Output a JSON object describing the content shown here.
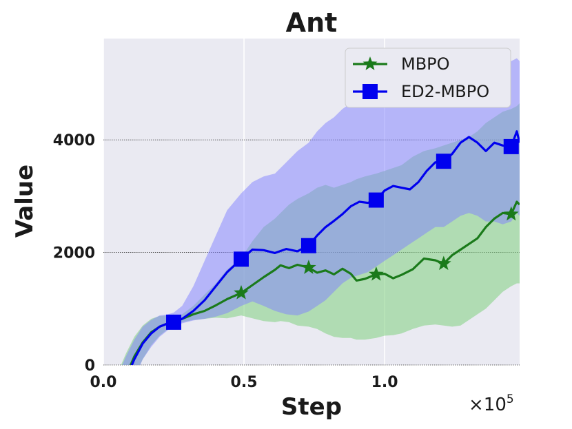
{
  "chart_data": {
    "type": "line",
    "title": "Ant",
    "xlabel": "Step",
    "ylabel": "Value",
    "x_multiplier": "×10",
    "x_multiplier_exp": "5",
    "xlim": [
      0,
      1.48
    ],
    "ylim": [
      0,
      5800
    ],
    "xticks": [
      {
        "value": 0.0,
        "label": "0.0"
      },
      {
        "value": 0.5,
        "label": "0.5"
      },
      {
        "value": 1.0,
        "label": "1.0"
      }
    ],
    "yticks": [
      {
        "value": 0,
        "label": "0"
      },
      {
        "value": 2000,
        "label": "2000"
      },
      {
        "value": 4000,
        "label": "4000"
      }
    ],
    "grid": true,
    "legend_position": "top-right",
    "background": "#eaeaf2",
    "series": [
      {
        "name": "MBPO",
        "color": "#1a7a1a",
        "band_color": "#7fcf7f",
        "marker": "star",
        "x": [
          0.02,
          0.05,
          0.08,
          0.11,
          0.14,
          0.17,
          0.2,
          0.23,
          0.25,
          0.28,
          0.32,
          0.36,
          0.4,
          0.44,
          0.49,
          0.53,
          0.57,
          0.61,
          0.63,
          0.66,
          0.69,
          0.73,
          0.76,
          0.79,
          0.82,
          0.85,
          0.88,
          0.9,
          0.93,
          0.97,
          1.0,
          1.03,
          1.06,
          1.1,
          1.14,
          1.18,
          1.21,
          1.24,
          1.27,
          1.3,
          1.33,
          1.36,
          1.39,
          1.42,
          1.45,
          1.47,
          1.48
        ],
        "y": [
          -800,
          -500,
          -200,
          150,
          400,
          580,
          680,
          740,
          760,
          820,
          900,
          960,
          1060,
          1170,
          1280,
          1420,
          1560,
          1690,
          1770,
          1720,
          1780,
          1730,
          1640,
          1680,
          1610,
          1710,
          1620,
          1500,
          1530,
          1610,
          1620,
          1540,
          1600,
          1700,
          1890,
          1860,
          1800,
          1950,
          2050,
          2150,
          2250,
          2450,
          2600,
          2700,
          2680,
          2900,
          2850
        ],
        "lower": [
          -1200,
          -900,
          -600,
          -200,
          100,
          350,
          520,
          640,
          700,
          760,
          800,
          820,
          840,
          830,
          880,
          830,
          780,
          760,
          780,
          760,
          700,
          680,
          640,
          560,
          500,
          480,
          480,
          450,
          450,
          480,
          520,
          530,
          560,
          640,
          700,
          720,
          700,
          680,
          700,
          800,
          900,
          1000,
          1150,
          1300,
          1400,
          1450,
          1450
        ],
        "upper": [
          -400,
          -150,
          200,
          500,
          700,
          820,
          870,
          880,
          860,
          900,
          1050,
          1250,
          1450,
          1700,
          1900,
          2200,
          2450,
          2600,
          2700,
          2850,
          2950,
          3050,
          3150,
          3200,
          3150,
          3200,
          3250,
          3300,
          3350,
          3400,
          3450,
          3500,
          3550,
          3700,
          3800,
          3850,
          3900,
          3950,
          4000,
          4050,
          4150,
          4300,
          4400,
          4500,
          4550,
          4600,
          4650
        ],
        "markers_x": [
          0.25,
          0.49,
          0.73,
          0.97,
          1.21,
          1.45
        ]
      },
      {
        "name": "ED2-MBPO",
        "color": "#0000ee",
        "band_color": "#8080ff",
        "marker": "square",
        "x": [
          0.02,
          0.05,
          0.08,
          0.11,
          0.14,
          0.17,
          0.2,
          0.23,
          0.25,
          0.28,
          0.32,
          0.36,
          0.4,
          0.44,
          0.49,
          0.53,
          0.57,
          0.61,
          0.65,
          0.69,
          0.73,
          0.76,
          0.79,
          0.82,
          0.85,
          0.88,
          0.91,
          0.94,
          0.97,
          1.0,
          1.03,
          1.06,
          1.09,
          1.12,
          1.15,
          1.18,
          1.21,
          1.24,
          1.27,
          1.3,
          1.33,
          1.36,
          1.39,
          1.42,
          1.45,
          1.47,
          1.48
        ],
        "y": [
          -900,
          -600,
          -250,
          100,
          380,
          560,
          680,
          740,
          760,
          820,
          960,
          1150,
          1400,
          1650,
          1880,
          2050,
          2040,
          1990,
          2060,
          2020,
          2120,
          2300,
          2450,
          2560,
          2680,
          2820,
          2900,
          2880,
          2930,
          3100,
          3180,
          3150,
          3120,
          3250,
          3450,
          3600,
          3620,
          3750,
          3950,
          4050,
          3950,
          3800,
          3950,
          3900,
          3880,
          4150,
          3950
        ],
        "lower": [
          -1300,
          -1000,
          -600,
          -250,
          100,
          320,
          500,
          620,
          690,
          740,
          790,
          820,
          860,
          920,
          1050,
          1130,
          1050,
          960,
          900,
          880,
          950,
          1050,
          1150,
          1300,
          1450,
          1550,
          1600,
          1650,
          1750,
          1850,
          1950,
          2050,
          2150,
          2250,
          2350,
          2450,
          2450,
          2550,
          2650,
          2700,
          2650,
          2550,
          2550,
          2500,
          2550,
          2700,
          2650
        ],
        "upper": [
          -500,
          -200,
          150,
          450,
          680,
          800,
          880,
          900,
          930,
          1050,
          1400,
          1850,
          2300,
          2750,
          3050,
          3250,
          3350,
          3400,
          3600,
          3800,
          3950,
          4150,
          4300,
          4400,
          4550,
          4650,
          4750,
          4800,
          4850,
          4950,
          5000,
          5000,
          4950,
          5000,
          5050,
          5100,
          5100,
          5150,
          5200,
          5250,
          5250,
          5300,
          5350,
          5400,
          5400,
          5450,
          5400
        ],
        "markers_x": [
          0.25,
          0.49,
          0.73,
          0.97,
          1.21,
          1.45
        ]
      }
    ]
  }
}
